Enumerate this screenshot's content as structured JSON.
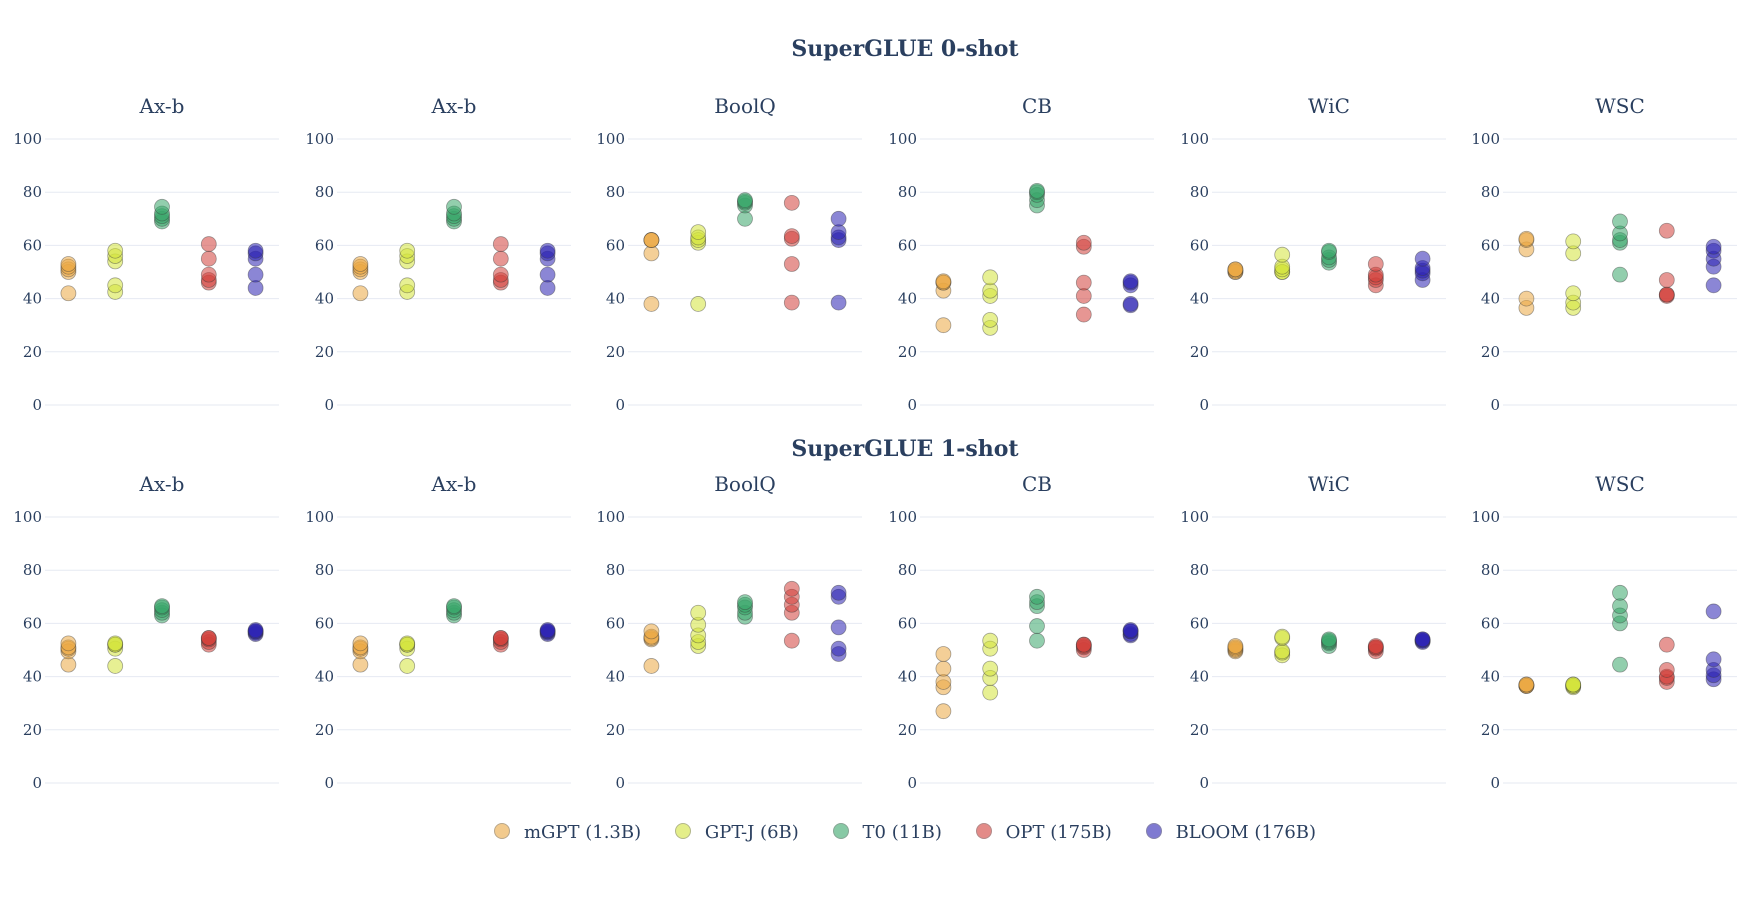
{
  "row_titles": [
    "SuperGLUE 0-shot",
    "SuperGLUE 1-shot"
  ],
  "legend": [
    {
      "name": "mGPT (1.3B)",
      "color": "#eba842"
    },
    {
      "name": "GPT-J (6B)",
      "color": "#d3e33b"
    },
    {
      "name": "T0 (11B)",
      "color": "#38a66a"
    },
    {
      "name": "OPT (175B)",
      "color": "#d23f3a"
    },
    {
      "name": "BLOOM (176B)",
      "color": "#2b22b3"
    }
  ],
  "chart_data": [
    {
      "type": "scatter",
      "title": "SuperGLUE 0-shot",
      "ylim": [
        0,
        100
      ],
      "yticks": [
        0,
        20,
        40,
        60,
        80,
        100
      ],
      "grid": true,
      "legend_position": "bottom-center",
      "panels": [
        {
          "title": "Ax-b",
          "values": [
            [
              42,
              50,
              51,
              52,
              53
            ],
            [
              42.5,
              45,
              54,
              56,
              58
            ],
            [
              69,
              70,
              71,
              72,
              74.5
            ],
            [
              46,
              47,
              49,
              55,
              60.5
            ],
            [
              44,
              49,
              55,
              57,
              58
            ]
          ]
        },
        {
          "title": "Ax-b",
          "values": [
            [
              42,
              50,
              51,
              52,
              53
            ],
            [
              42.5,
              45,
              54,
              56,
              58
            ],
            [
              69,
              70,
              71,
              72,
              74.5
            ],
            [
              46,
              47,
              49,
              55,
              60.5
            ],
            [
              44,
              49,
              55,
              57,
              58
            ]
          ]
        },
        {
          "title": "BoolQ",
          "values": [
            [
              38,
              57,
              62,
              62,
              62
            ],
            [
              38,
              61,
              62,
              63,
              65
            ],
            [
              70,
              75,
              76,
              76.5,
              77
            ],
            [
              38.5,
              53,
              62.5,
              63.5,
              76
            ],
            [
              38.5,
              62,
              63,
              65,
              70
            ]
          ]
        },
        {
          "title": "CB",
          "values": [
            [
              30,
              43,
              46,
              46,
              46.5
            ],
            [
              29,
              32,
              41,
              43,
              48
            ],
            [
              75,
              77,
              79,
              80,
              80.5
            ],
            [
              34,
              41,
              46,
              59.5,
              61
            ],
            [
              37.5,
              38,
              45,
              46,
              46.5
            ]
          ]
        },
        {
          "title": "WiC",
          "values": [
            [
              50,
              50,
              50.5,
              51,
              51
            ],
            [
              50,
              50,
              51,
              52,
              56.5
            ],
            [
              53.5,
              54.5,
              55.5,
              57.5,
              58
            ],
            [
              45,
              47,
              48,
              49,
              53
            ],
            [
              47,
              49.5,
              50.5,
              51.5,
              55
            ]
          ]
        },
        {
          "title": "WSC",
          "values": [
            [
              36.5,
              40,
              58.5,
              62,
              62.5
            ],
            [
              36.5,
              38.5,
              42,
              57,
              61.5
            ],
            [
              49,
              61,
              62,
              64.5,
              69
            ],
            [
              41,
              41.5,
              41.5,
              47,
              65.5
            ],
            [
              45,
              52,
              55,
              58,
              59.5
            ]
          ]
        }
      ]
    },
    {
      "type": "scatter",
      "title": "SuperGLUE 1-shot",
      "ylim": [
        0,
        100
      ],
      "yticks": [
        0,
        20,
        40,
        60,
        80,
        100
      ],
      "grid": true,
      "legend_position": "bottom-center",
      "panels": [
        {
          "title": "Ax-b",
          "values": [
            [
              44.5,
              49.5,
              50.5,
              51,
              52.5
            ],
            [
              44,
              50.5,
              52,
              52,
              52.5
            ],
            [
              63,
              64,
              65,
              66,
              66.5
            ],
            [
              52,
              53,
              54,
              54.5,
              54.5
            ],
            [
              56,
              56.5,
              57,
              57,
              57.5
            ]
          ]
        },
        {
          "title": "Ax-b",
          "values": [
            [
              44.5,
              49.5,
              50.5,
              51,
              52.5
            ],
            [
              44,
              50.5,
              52,
              52,
              52.5
            ],
            [
              63,
              64,
              65,
              66,
              66.5
            ],
            [
              52,
              53,
              54,
              54.5,
              54.5
            ],
            [
              56,
              56.5,
              57,
              57,
              57.5
            ]
          ]
        },
        {
          "title": "BoolQ",
          "values": [
            [
              44,
              54,
              54.5,
              55,
              57
            ],
            [
              51.5,
              53,
              55.5,
              59.5,
              64
            ],
            [
              62.5,
              64,
              66,
              67,
              68
            ],
            [
              53.5,
              64,
              67,
              70,
              73
            ],
            [
              48.5,
              50.5,
              58.5,
              70,
              71.5
            ]
          ]
        },
        {
          "title": "CB",
          "values": [
            [
              27,
              36,
              38,
              43,
              48.5
            ],
            [
              34,
              39.5,
              43,
              50.5,
              53.5
            ],
            [
              53.5,
              59,
              66.5,
              68,
              70
            ],
            [
              50,
              51,
              51.5,
              52,
              52
            ],
            [
              55.5,
              56,
              57,
              57,
              57.5
            ]
          ]
        },
        {
          "title": "WiC",
          "values": [
            [
              49.5,
              50,
              50.5,
              51,
              51.5
            ],
            [
              48,
              49,
              49.5,
              54.5,
              55
            ],
            [
              51.5,
              52.5,
              53,
              53.5,
              54
            ],
            [
              49.5,
              50.5,
              51,
              51,
              51.5
            ],
            [
              53,
              53.5,
              53.5,
              54,
              54
            ]
          ]
        },
        {
          "title": "WSC",
          "values": [
            [
              36.5,
              36.5,
              36.5,
              37,
              37
            ],
            [
              36,
              36.5,
              36.5,
              37,
              37
            ],
            [
              44.5,
              60,
              63,
              66.5,
              71.5
            ],
            [
              38,
              39.5,
              40,
              42.5,
              52
            ],
            [
              39,
              40.5,
              42.5,
              46.5,
              64.5
            ]
          ]
        }
      ]
    }
  ]
}
